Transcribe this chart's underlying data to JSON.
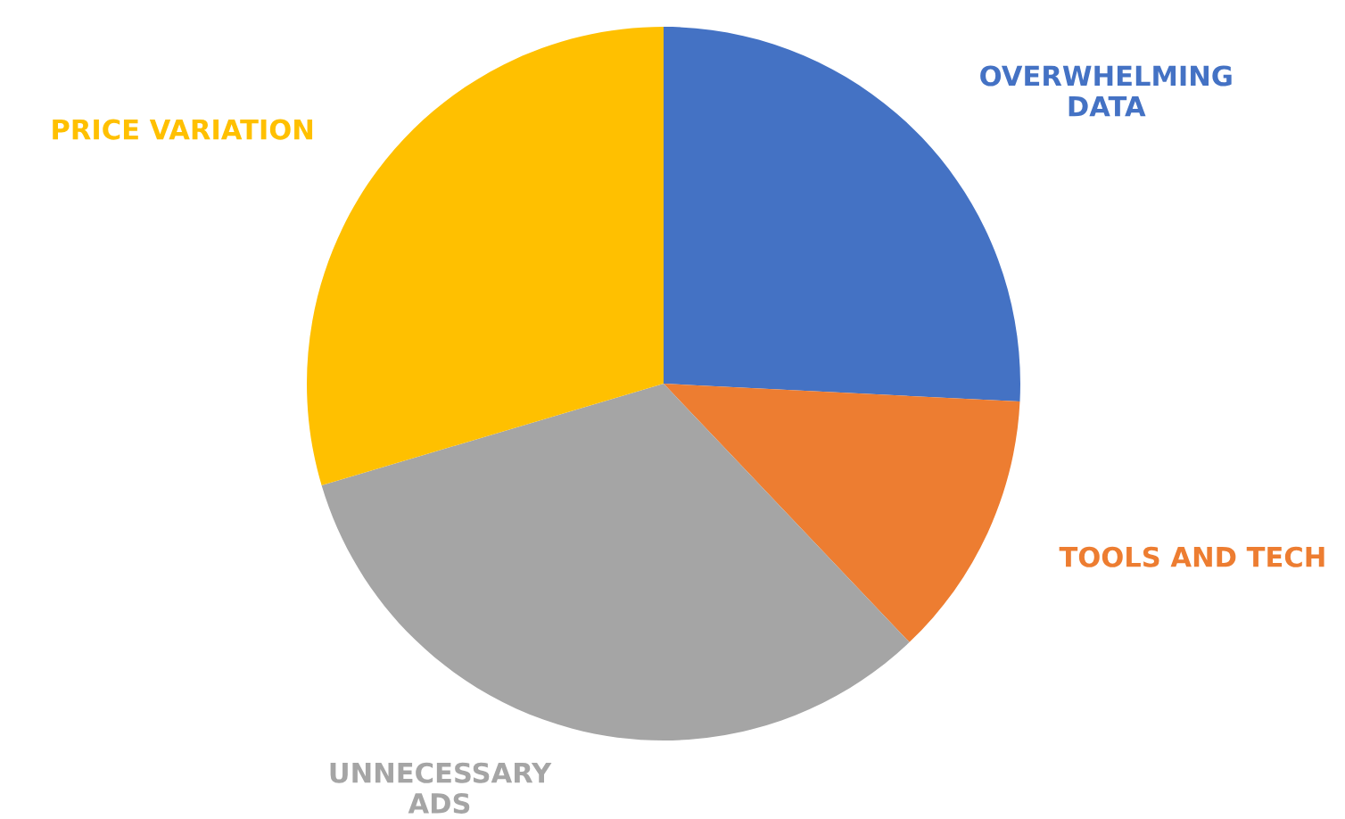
{
  "chart_data": {
    "type": "pie",
    "categories": [
      "OVERWHELMING\nDATA",
      "TOOLS AND TECH",
      "UNNECESSARY\nADS",
      "PRICE VARIATION"
    ],
    "values": [
      25.8,
      12.1,
      32.5,
      29.6
    ],
    "colors": [
      "#4472c4",
      "#ed7d31",
      "#a5a5a5",
      "#ffc000"
    ],
    "legend": false
  }
}
